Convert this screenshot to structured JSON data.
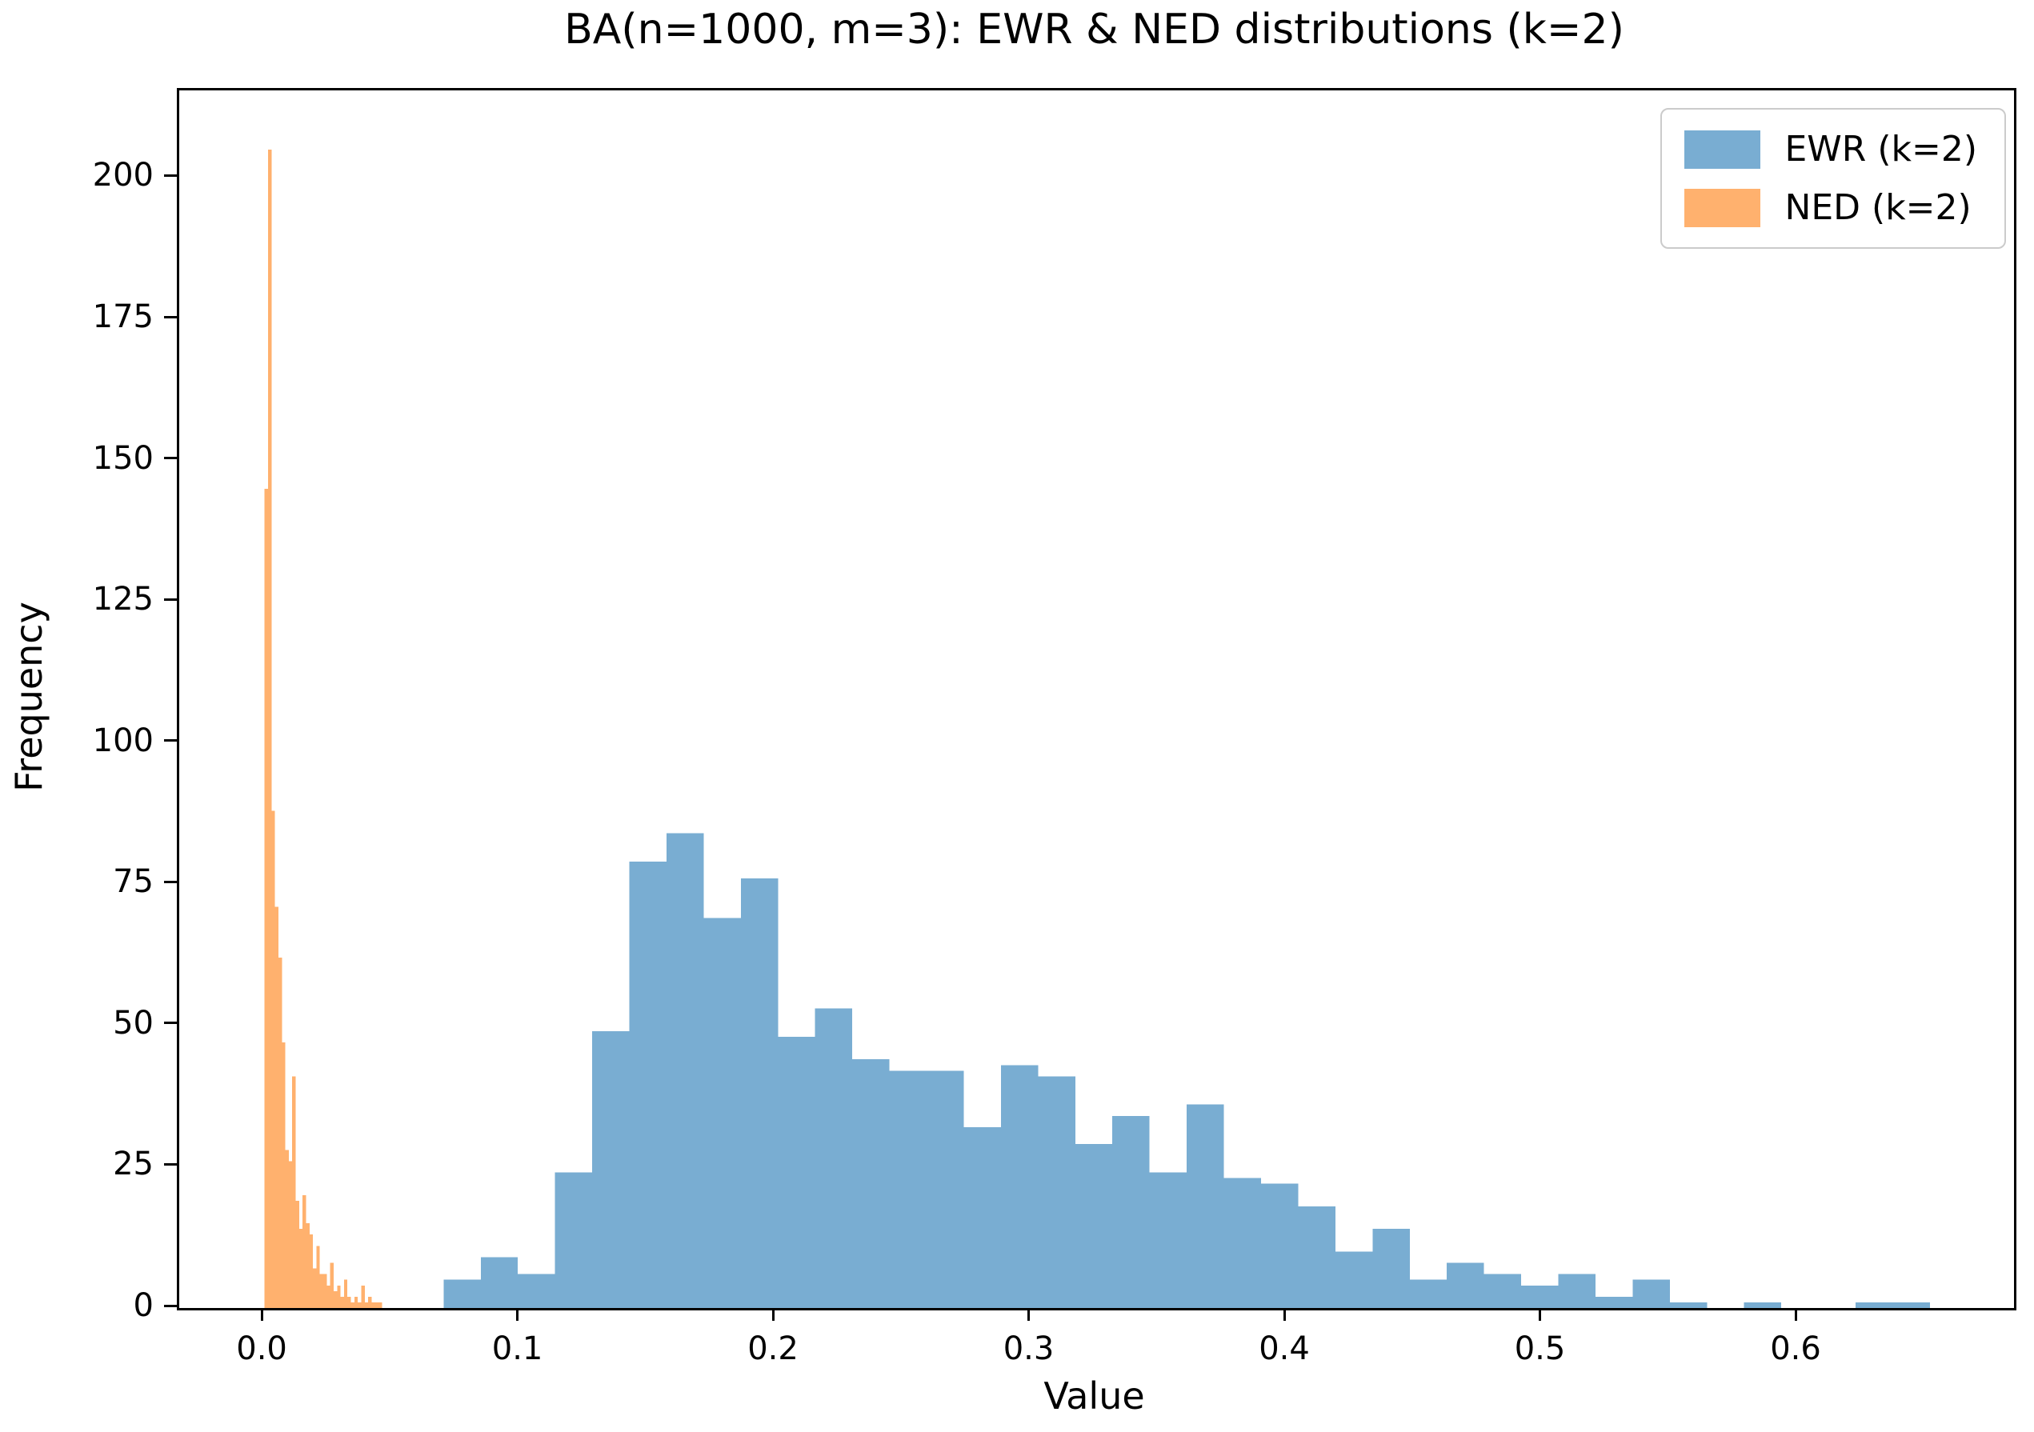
{
  "title": "BA(n=1000, m=3): EWR & NED distributions (k=2)",
  "chart_data": {
    "type": "bar",
    "subtype": "histogram",
    "title": "BA(n=1000, m=3): EWR & NED distributions (k=2)",
    "xlabel": "Value",
    "ylabel": "Frequency",
    "grid": false,
    "legend_position": "upper right",
    "xlim": [
      -0.0332,
      0.6845
    ],
    "ylim": [
      0,
      215.5
    ],
    "x_ticks": [
      0.0,
      0.1,
      0.2,
      0.3,
      0.4,
      0.5,
      0.6
    ],
    "x_tick_labels": [
      "0.0",
      "0.1",
      "0.2",
      "0.3",
      "0.4",
      "0.5",
      "0.6"
    ],
    "y_ticks": [
      0,
      25,
      50,
      75,
      100,
      125,
      150,
      175,
      200
    ],
    "y_tick_labels": [
      "0",
      "25",
      "50",
      "75",
      "100",
      "125",
      "150",
      "175",
      "200"
    ],
    "series": [
      {
        "name": "EWR (k=2)",
        "color": "#79add2",
        "bin_start": 0.0702,
        "bin_width": 0.014535,
        "counts": [
          5,
          9,
          6,
          24,
          49,
          79,
          84,
          69,
          76,
          48,
          53,
          44,
          42,
          42,
          32,
          43,
          41,
          29,
          34,
          24,
          36,
          23,
          22,
          18,
          10,
          14,
          5,
          8,
          6,
          4,
          6,
          2,
          5,
          1,
          0,
          1,
          0,
          0,
          1,
          1
        ]
      },
      {
        "name": "NED (k=2)",
        "color": "#ffb16e",
        "bin_start": 0.0002,
        "bin_width": 0.00135,
        "counts": [
          145,
          205,
          88,
          71,
          62,
          47,
          28,
          26,
          41,
          19,
          14,
          20,
          15,
          13,
          7,
          11,
          6,
          6,
          4,
          8,
          3,
          4,
          2,
          5,
          2,
          1,
          2,
          1,
          4,
          1,
          2,
          1,
          1,
          1
        ]
      }
    ]
  }
}
